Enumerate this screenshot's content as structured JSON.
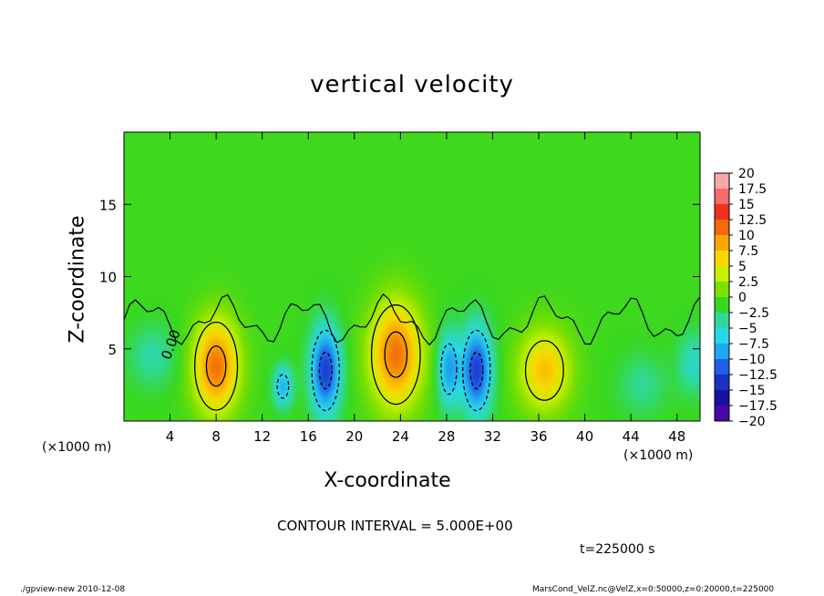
{
  "chart_data": {
    "type": "heatmap",
    "title": "vertical velocity",
    "xlabel": "X-coordinate",
    "ylabel": "Z-coordinate",
    "x_unit_label": "(×1000 m)",
    "xlim": [
      0,
      50
    ],
    "ylim": [
      0,
      20
    ],
    "x_ticks": [
      4,
      8,
      12,
      16,
      20,
      24,
      28,
      32,
      36,
      40,
      44,
      48
    ],
    "y_ticks": [
      5,
      10,
      15
    ],
    "contour_interval_label": "CONTOUR INTERVAL = 5.000E+00",
    "contour_zero_label": "0.00",
    "time_label": "t=225000 s",
    "colorbar": {
      "levels": [
        "20",
        "17.5",
        "15",
        "12.5",
        "10",
        "7.5",
        "5",
        "2.5",
        "0",
        "−2.5",
        "−5",
        "−7.5",
        "−10",
        "−12.5",
        "−15",
        "−17.5",
        "−20"
      ],
      "colors": [
        "#f9a8a8",
        "#f46c6c",
        "#f0301c",
        "#f26a0c",
        "#f8a800",
        "#f8d800",
        "#c8f000",
        "#7ee000",
        "#38d820",
        "#30d8a0",
        "#28d8e8",
        "#20a8f0",
        "#2060e8",
        "#1c30c8",
        "#1810a0",
        "#4808a8",
        "#8808c8"
      ]
    },
    "cells": [
      {
        "x": 8,
        "z": 3.8,
        "w": 12,
        "sx": 1.4,
        "sz": 2.3
      },
      {
        "x": 23.6,
        "z": 4.6,
        "w": 12,
        "sx": 1.6,
        "sz": 2.6
      },
      {
        "x": 36.5,
        "z": 3.5,
        "w": 8.5,
        "sx": 1.6,
        "sz": 2.0
      },
      {
        "x": 17.5,
        "z": 3.5,
        "w": -12,
        "sx": 0.9,
        "sz": 2.1
      },
      {
        "x": 30.6,
        "z": 3.5,
        "w": -12,
        "sx": 0.9,
        "sz": 2.1
      },
      {
        "x": 28.2,
        "z": 3.6,
        "w": -8,
        "sx": 0.7,
        "sz": 1.8
      },
      {
        "x": 13.8,
        "z": 2.4,
        "w": -7,
        "sx": 0.6,
        "sz": 1.0
      },
      {
        "x": 2.5,
        "z": 4.5,
        "w": -3,
        "sx": 1.5,
        "sz": 1.5
      },
      {
        "x": 49.5,
        "z": 4,
        "w": -4,
        "sx": 1.0,
        "sz": 1.5
      },
      {
        "x": 45,
        "z": 2.5,
        "w": -2.5,
        "sx": 1.5,
        "sz": 1.5
      }
    ]
  },
  "footer": {
    "left": "./gpview-new   2010-12-08",
    "right": "MarsCond_VelZ.nc@VelZ,x=0:50000,z=0:20000,t=225000"
  }
}
